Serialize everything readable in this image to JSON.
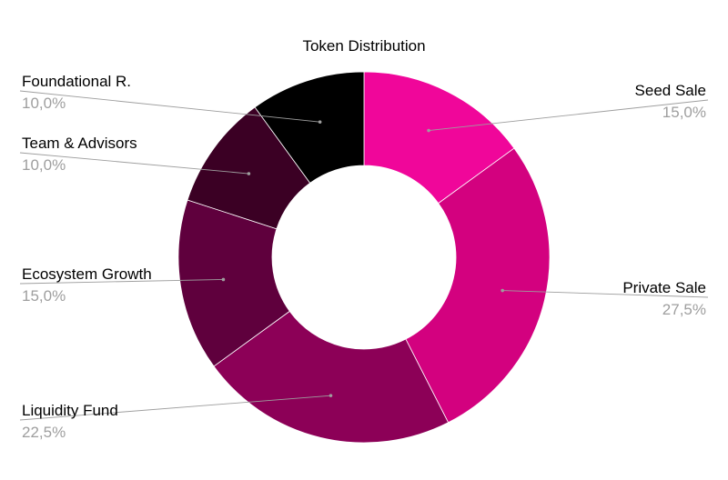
{
  "chart_data": {
    "type": "pie",
    "donut": true,
    "title": "Token Distribution",
    "slices": [
      {
        "label": "Seed Sale",
        "value": 15.0,
        "display": "15,0%",
        "color": "#f0069a"
      },
      {
        "label": "Private Sale",
        "value": 27.5,
        "display": "27,5%",
        "color": "#d3017f"
      },
      {
        "label": "Liquidity Fund",
        "value": 22.5,
        "display": "22,5%",
        "color": "#8c0057"
      },
      {
        "label": "Ecosystem Growth",
        "value": 15.0,
        "display": "15,0%",
        "color": "#5f003d"
      },
      {
        "label": "Team & Advisors",
        "value": 10.0,
        "display": "10,0%",
        "color": "#3b0024"
      },
      {
        "label": "Foundational R.",
        "value": 10.0,
        "display": "10,0%",
        "color": "#000000"
      }
    ],
    "start_angle": "12 o'clock",
    "direction": "clockwise",
    "legend": "none (direct labels with leader lines)"
  }
}
